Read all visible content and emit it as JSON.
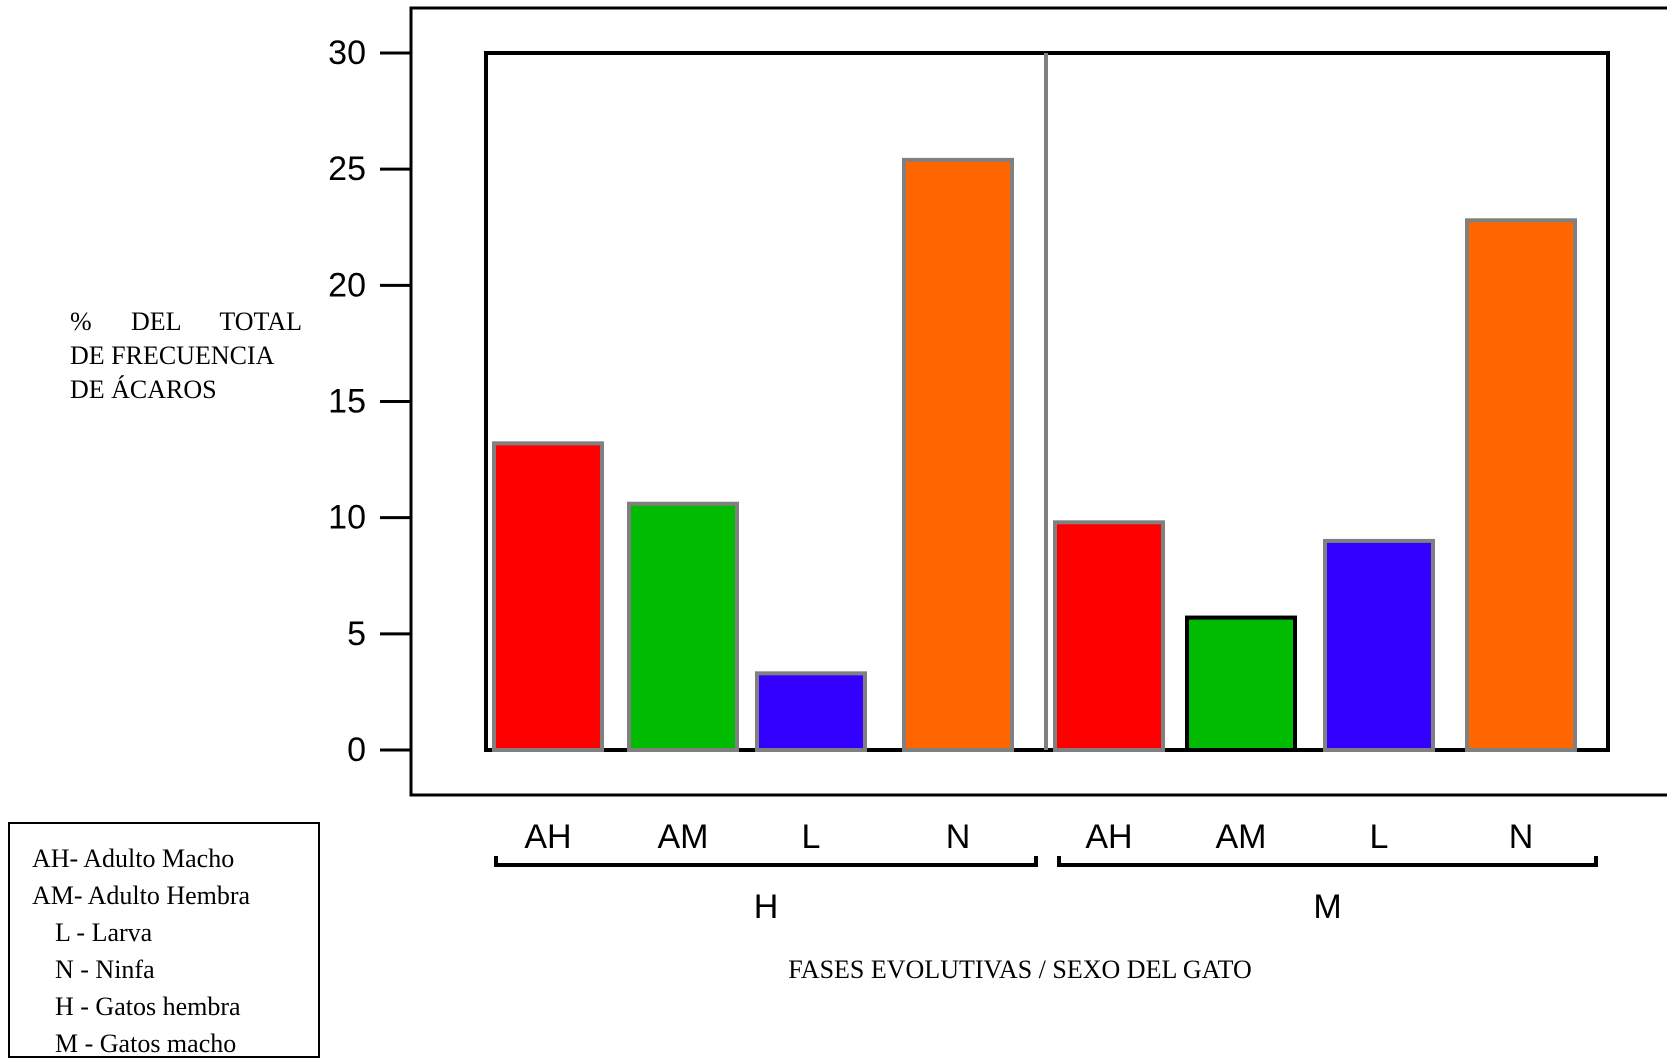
{
  "chart_data": {
    "type": "bar",
    "title": "",
    "ylabel_lines": [
      "% DEL TOTAL",
      "DE FRECUENCIA",
      "DE ÁCAROS"
    ],
    "xlabel": "FASES EVOLUTIVAS / SEXO DEL GATO",
    "ylim": [
      0,
      30
    ],
    "yticks": [
      "0",
      "5",
      "10",
      "15",
      "20",
      "25",
      "30"
    ],
    "groups": [
      {
        "name": "H",
        "categories": [
          "AH",
          "AM",
          "L",
          "N"
        ],
        "values": [
          13.2,
          10.6,
          3.3,
          25.4
        ]
      },
      {
        "name": "M",
        "categories": [
          "AH",
          "AM",
          "L",
          "N"
        ],
        "values": [
          9.8,
          5.7,
          9.0,
          22.8
        ]
      }
    ],
    "category_colors": {
      "AH": "#ff0000",
      "AM": "#00bb00",
      "L": "#3300ff",
      "N": "#ff6600"
    },
    "bar_outline": "#808080",
    "grid": false,
    "legend": {
      "position": "bottom-left",
      "items": [
        "AH- Adulto Macho",
        "AM- Adulto Hembra",
        "L - Larva",
        "N - Ninfa",
        "H - Gatos hembra",
        "M - Gatos macho"
      ]
    }
  }
}
